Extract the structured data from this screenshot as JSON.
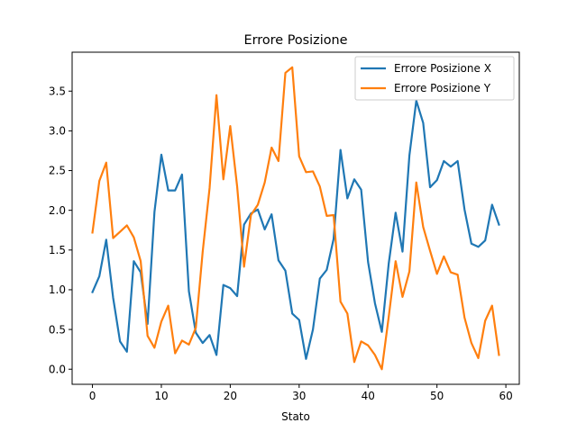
{
  "chart_data": {
    "type": "line",
    "title": "Errore Posizione",
    "xlabel": "Stato",
    "ylabel": "",
    "xlim": [
      -2.95,
      61.95
    ],
    "ylim": [
      -0.19,
      3.99
    ],
    "xticks": [
      0,
      10,
      20,
      30,
      40,
      50,
      60
    ],
    "xtick_labels": [
      "0",
      "10",
      "20",
      "30",
      "40",
      "50",
      "60"
    ],
    "yticks": [
      0.0,
      0.5,
      1.0,
      1.5,
      2.0,
      2.5,
      3.0,
      3.5
    ],
    "ytick_labels": [
      "0.0",
      "0.5",
      "1.0",
      "1.5",
      "2.0",
      "2.5",
      "3.0",
      "3.5"
    ],
    "grid": false,
    "legend_position": "top-right",
    "x": [
      0,
      1,
      2,
      3,
      4,
      5,
      6,
      7,
      8,
      9,
      10,
      11,
      12,
      13,
      14,
      15,
      16,
      17,
      18,
      19,
      20,
      21,
      22,
      23,
      24,
      25,
      26,
      27,
      28,
      29,
      30,
      31,
      32,
      33,
      34,
      35,
      36,
      37,
      38,
      39,
      40,
      41,
      42,
      43,
      44,
      45,
      46,
      47,
      48,
      49,
      50,
      51,
      52,
      53,
      54,
      55,
      56,
      57,
      58,
      59
    ],
    "series": [
      {
        "name": "Errore Posizione X",
        "color": "#1f77b4",
        "values": [
          0.97,
          1.17,
          1.63,
          0.9,
          0.35,
          0.22,
          1.36,
          1.22,
          0.57,
          1.98,
          2.7,
          2.25,
          2.25,
          2.45,
          0.98,
          0.46,
          0.33,
          0.43,
          0.18,
          1.06,
          1.02,
          0.92,
          1.82,
          1.96,
          2.01,
          1.76,
          1.95,
          1.37,
          1.24,
          0.7,
          0.62,
          0.13,
          0.5,
          1.14,
          1.25,
          1.64,
          2.76,
          2.15,
          2.39,
          2.26,
          1.35,
          0.83,
          0.47,
          1.33,
          1.97,
          1.48,
          2.69,
          3.38,
          3.1,
          2.29,
          2.38,
          2.62,
          2.55,
          2.62,
          2.01,
          1.58,
          1.54,
          1.62,
          2.07,
          1.82
        ]
      },
      {
        "name": "Errore Posizione Y",
        "color": "#ff7f0e",
        "values": [
          1.72,
          2.37,
          2.6,
          1.65,
          1.73,
          1.81,
          1.66,
          1.36,
          0.42,
          0.27,
          0.6,
          0.8,
          0.2,
          0.36,
          0.31,
          0.52,
          1.48,
          2.28,
          3.45,
          2.39,
          3.06,
          2.3,
          1.29,
          1.94,
          2.07,
          2.35,
          2.79,
          2.62,
          3.73,
          3.8,
          2.68,
          2.48,
          2.49,
          2.3,
          1.93,
          1.94,
          0.85,
          0.7,
          0.09,
          0.35,
          0.3,
          0.18,
          0.0,
          0.66,
          1.36,
          0.91,
          1.23,
          2.35,
          1.79,
          1.49,
          1.2,
          1.42,
          1.22,
          1.19,
          0.65,
          0.33,
          0.14,
          0.61,
          0.8,
          0.18
        ]
      }
    ]
  }
}
